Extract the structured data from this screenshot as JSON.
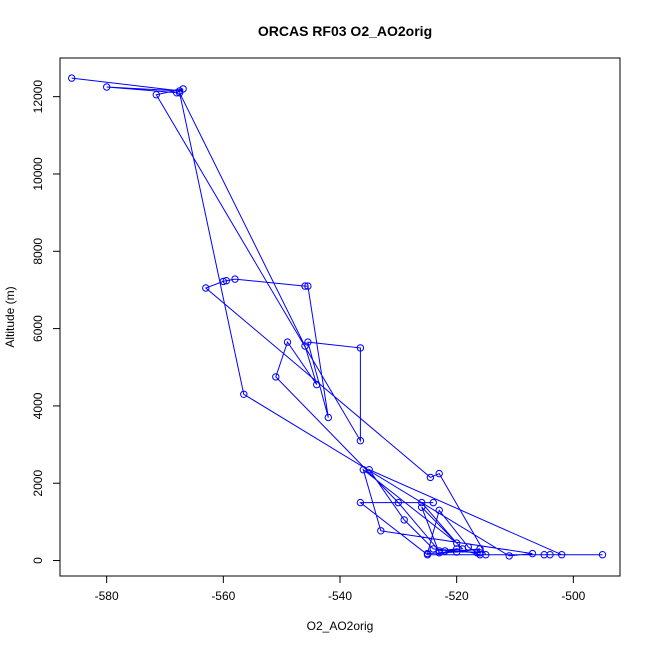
{
  "chart_data": {
    "type": "line",
    "title": "ORCAS RF03 O2_AO2orig",
    "xlabel": "O2_AO2orig",
    "ylabel": "Altitude (m)",
    "xlim": [
      -588,
      -492
    ],
    "ylim": [
      -400,
      13000
    ],
    "x_ticks": [
      -580,
      -560,
      -540,
      -520,
      -500
    ],
    "y_ticks": [
      0,
      2000,
      4000,
      6000,
      8000,
      10000,
      12000
    ],
    "grid": false,
    "legend": "none",
    "series_color": "#0000ff",
    "marker": "open-circle",
    "series": [
      {
        "points": [
          [
            -586,
            12480
          ],
          [
            -567.5,
            12150
          ],
          [
            -580,
            12250
          ],
          [
            -568,
            12100
          ],
          [
            -566.9,
            12200
          ],
          [
            -571.5,
            12050
          ],
          [
            -536.5,
            3100
          ],
          [
            -536.5,
            5500
          ],
          [
            -545.5,
            5650
          ],
          [
            -542,
            3700
          ],
          [
            -545.5,
            7100
          ],
          [
            -546,
            7100
          ],
          [
            -558,
            7280
          ],
          [
            -559.5,
            7240
          ],
          [
            -560,
            7220
          ],
          [
            -563,
            7050
          ],
          [
            -524.5,
            2150
          ],
          [
            -523,
            2250
          ],
          [
            -515,
            150
          ],
          [
            -505,
            150
          ],
          [
            -495,
            150
          ],
          [
            -525,
            150
          ],
          [
            -536.5,
            1500
          ],
          [
            -524,
            1500
          ],
          [
            -526,
            1500
          ],
          [
            -520,
            450
          ],
          [
            -536,
            2350
          ],
          [
            -533,
            770
          ],
          [
            -507,
            180
          ],
          [
            -511,
            120
          ],
          [
            -556.5,
            4300
          ],
          [
            -567.5,
            12100
          ],
          [
            -546,
            5550
          ],
          [
            -544,
            4550
          ],
          [
            -549,
            5650
          ],
          [
            -551,
            4750
          ],
          [
            -530,
            1500
          ],
          [
            -523,
            250
          ],
          [
            -520,
            300
          ],
          [
            -516,
            150
          ],
          [
            -504,
            150
          ],
          [
            -502,
            150
          ],
          [
            -535,
            2350
          ],
          [
            -529,
            1050
          ],
          [
            -524,
            300
          ],
          [
            -516,
            200
          ],
          [
            -522,
            250
          ],
          [
            -519,
            300
          ],
          [
            -526,
            1380
          ],
          [
            -523,
            200
          ],
          [
            -516,
            300
          ],
          [
            -520,
            220
          ],
          [
            -525,
            180
          ],
          [
            -523,
            1300
          ],
          [
            -518,
            350
          ],
          [
            -516.5,
            200
          ]
        ]
      }
    ]
  }
}
